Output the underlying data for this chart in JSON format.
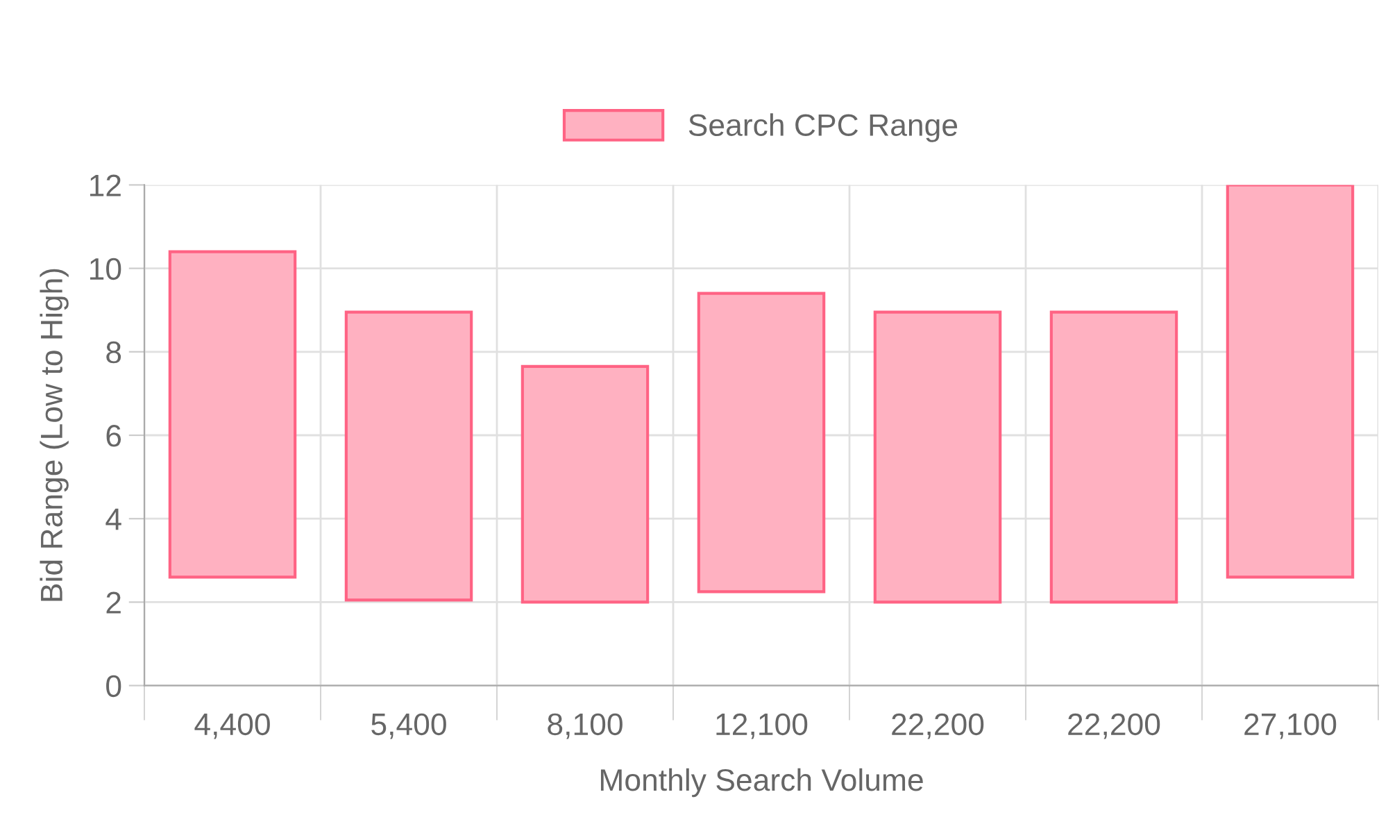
{
  "chart_data": {
    "type": "bar",
    "xlabel": "Monthly Search Volume",
    "ylabel": "Bid Range (Low to High)",
    "categories": [
      "4,400",
      "5,400",
      "8,100",
      "12,100",
      "22,200",
      "22,200",
      "27,100"
    ],
    "series": [
      {
        "name": "Search CPC Range",
        "color": "#ffb1c1",
        "base": [
          2.6,
          2.05,
          2.0,
          2.25,
          2.0,
          2.0,
          2.6
        ],
        "values": [
          7.8,
          6.9,
          5.65,
          7.15,
          6.95,
          6.95,
          9.4
        ]
      }
    ],
    "ylim": [
      0,
      12
    ],
    "yticks": [
      0,
      2,
      4,
      6,
      8,
      10,
      12
    ],
    "grid": true,
    "legend": "top"
  }
}
